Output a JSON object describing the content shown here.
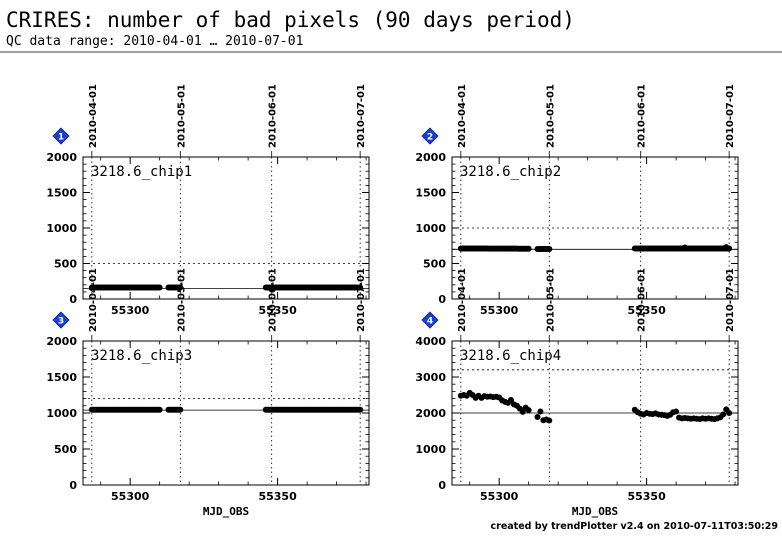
{
  "header": {
    "title": "CRIRES: number of bad pixels (90 days period)",
    "subtitle": "QC data range: 2010-04-01 … 2010-07-01"
  },
  "footer": "created by trendPlotter v2.4 on 2010-07-11T03:50:29",
  "colors": {
    "badge": "#1a3fd6",
    "axis": "#000000",
    "points": "#000000"
  },
  "chart_data": [
    {
      "type": "scatter",
      "badge": "1",
      "panel_label": "3218.6_chip1",
      "xlim": [
        55284,
        55381
      ],
      "ylim": [
        0,
        2000
      ],
      "yticks": [
        0,
        500,
        1000,
        1500,
        2000
      ],
      "xticks": [
        55300,
        55350
      ],
      "xlabel": "",
      "date_markers": [
        {
          "mjd": 55287,
          "label": "2010-04-01"
        },
        {
          "mjd": 55317,
          "label": "2010-05-01"
        },
        {
          "mjd": 55348,
          "label": "2010-06-01"
        },
        {
          "mjd": 55378,
          "label": "2010-07-01"
        }
      ],
      "reference_line": 150,
      "threshold_lines": [
        500
      ],
      "segments": [
        {
          "x_start": 55287,
          "x_end": 55310,
          "y_start": 162,
          "y_end": 162
        },
        {
          "x_start": 55313,
          "x_end": 55317,
          "y_start": 162,
          "y_end": 162
        },
        {
          "x_start": 55346,
          "x_end": 55378,
          "y_start": 162,
          "y_end": 162
        }
      ],
      "points": []
    },
    {
      "type": "scatter",
      "badge": "2",
      "panel_label": "3218.6_chip2",
      "xlim": [
        55284,
        55381
      ],
      "ylim": [
        0,
        2000
      ],
      "yticks": [
        0,
        500,
        1000,
        1500,
        2000
      ],
      "xticks": [
        55300,
        55350
      ],
      "xlabel": "",
      "date_markers": [
        {
          "mjd": 55287,
          "label": "2010-04-01"
        },
        {
          "mjd": 55317,
          "label": "2010-05-01"
        },
        {
          "mjd": 55348,
          "label": "2010-06-01"
        },
        {
          "mjd": 55378,
          "label": "2010-07-01"
        }
      ],
      "reference_line": 700,
      "threshold_lines": [
        1000
      ],
      "segments": [
        {
          "x_start": 55287,
          "x_end": 55310,
          "y_start": 712,
          "y_end": 708
        },
        {
          "x_start": 55313,
          "x_end": 55317,
          "y_start": 705,
          "y_end": 705
        },
        {
          "x_start": 55346,
          "x_end": 55378,
          "y_start": 712,
          "y_end": 712
        }
      ],
      "points": [
        {
          "x": 55363,
          "y": 725
        },
        {
          "x": 55377,
          "y": 730
        }
      ]
    },
    {
      "type": "scatter",
      "badge": "3",
      "panel_label": "3218.6_chip3",
      "xlim": [
        55284,
        55381
      ],
      "ylim": [
        0,
        2000
      ],
      "yticks": [
        0,
        500,
        1000,
        1500,
        2000
      ],
      "xticks": [
        55300,
        55350
      ],
      "xlabel": "MJD_OBS",
      "date_markers": [
        {
          "mjd": 55287,
          "label": "2010-04-01"
        },
        {
          "mjd": 55317,
          "label": "2010-05-01"
        },
        {
          "mjd": 55348,
          "label": "2010-06-01"
        },
        {
          "mjd": 55378,
          "label": "2010-07-01"
        }
      ],
      "reference_line": 1040,
      "threshold_lines": [
        1200
      ],
      "segments": [
        {
          "x_start": 55287,
          "x_end": 55310,
          "y_start": 1045,
          "y_end": 1045
        },
        {
          "x_start": 55313,
          "x_end": 55317,
          "y_start": 1045,
          "y_end": 1045
        },
        {
          "x_start": 55346,
          "x_end": 55378,
          "y_start": 1045,
          "y_end": 1045
        }
      ],
      "points": []
    },
    {
      "type": "scatter",
      "badge": "4",
      "panel_label": "3218.6_chip4",
      "xlim": [
        55284,
        55381
      ],
      "ylim": [
        0,
        4000
      ],
      "yticks": [
        0,
        1000,
        2000,
        3000,
        4000
      ],
      "xticks": [
        55300,
        55350
      ],
      "xlabel": "MJD_OBS",
      "date_markers": [
        {
          "mjd": 55287,
          "label": "2010-04-01"
        },
        {
          "mjd": 55317,
          "label": "2010-05-01"
        },
        {
          "mjd": 55348,
          "label": "2010-06-01"
        },
        {
          "mjd": 55378,
          "label": "2010-07-01"
        }
      ],
      "reference_line": 2000,
      "threshold_lines": [
        3200
      ],
      "segments": [],
      "points": [
        {
          "x": 55287,
          "y": 2480
        },
        {
          "x": 55288,
          "y": 2500
        },
        {
          "x": 55289,
          "y": 2480
        },
        {
          "x": 55290,
          "y": 2560
        },
        {
          "x": 55291,
          "y": 2500
        },
        {
          "x": 55292,
          "y": 2420
        },
        {
          "x": 55293,
          "y": 2480
        },
        {
          "x": 55294,
          "y": 2420
        },
        {
          "x": 55295,
          "y": 2470
        },
        {
          "x": 55296,
          "y": 2450
        },
        {
          "x": 55297,
          "y": 2460
        },
        {
          "x": 55298,
          "y": 2440
        },
        {
          "x": 55299,
          "y": 2450
        },
        {
          "x": 55300,
          "y": 2430
        },
        {
          "x": 55301,
          "y": 2350
        },
        {
          "x": 55302,
          "y": 2310
        },
        {
          "x": 55303,
          "y": 2280
        },
        {
          "x": 55304,
          "y": 2360
        },
        {
          "x": 55305,
          "y": 2240
        },
        {
          "x": 55306,
          "y": 2200
        },
        {
          "x": 55307,
          "y": 2120
        },
        {
          "x": 55308,
          "y": 2030
        },
        {
          "x": 55309,
          "y": 2150
        },
        {
          "x": 55310,
          "y": 2080
        },
        {
          "x": 55313,
          "y": 1890
        },
        {
          "x": 55314,
          "y": 2040
        },
        {
          "x": 55315,
          "y": 1800
        },
        {
          "x": 55316,
          "y": 1820
        },
        {
          "x": 55317,
          "y": 1790
        },
        {
          "x": 55346,
          "y": 2090
        },
        {
          "x": 55347,
          "y": 2020
        },
        {
          "x": 55348,
          "y": 1980
        },
        {
          "x": 55349,
          "y": 1960
        },
        {
          "x": 55350,
          "y": 2000
        },
        {
          "x": 55351,
          "y": 1980
        },
        {
          "x": 55352,
          "y": 1970
        },
        {
          "x": 55353,
          "y": 1990
        },
        {
          "x": 55354,
          "y": 1960
        },
        {
          "x": 55355,
          "y": 1950
        },
        {
          "x": 55356,
          "y": 1940
        },
        {
          "x": 55357,
          "y": 1920
        },
        {
          "x": 55358,
          "y": 1950
        },
        {
          "x": 55359,
          "y": 2020
        },
        {
          "x": 55360,
          "y": 2040
        },
        {
          "x": 55361,
          "y": 1870
        },
        {
          "x": 55362,
          "y": 1850
        },
        {
          "x": 55363,
          "y": 1860
        },
        {
          "x": 55364,
          "y": 1850
        },
        {
          "x": 55365,
          "y": 1840
        },
        {
          "x": 55366,
          "y": 1850
        },
        {
          "x": 55367,
          "y": 1840
        },
        {
          "x": 55368,
          "y": 1830
        },
        {
          "x": 55369,
          "y": 1850
        },
        {
          "x": 55370,
          "y": 1840
        },
        {
          "x": 55371,
          "y": 1850
        },
        {
          "x": 55372,
          "y": 1840
        },
        {
          "x": 55373,
          "y": 1830
        },
        {
          "x": 55374,
          "y": 1850
        },
        {
          "x": 55375,
          "y": 1880
        },
        {
          "x": 55376,
          "y": 1960
        },
        {
          "x": 55377,
          "y": 2100
        },
        {
          "x": 55378,
          "y": 2000
        }
      ]
    }
  ]
}
